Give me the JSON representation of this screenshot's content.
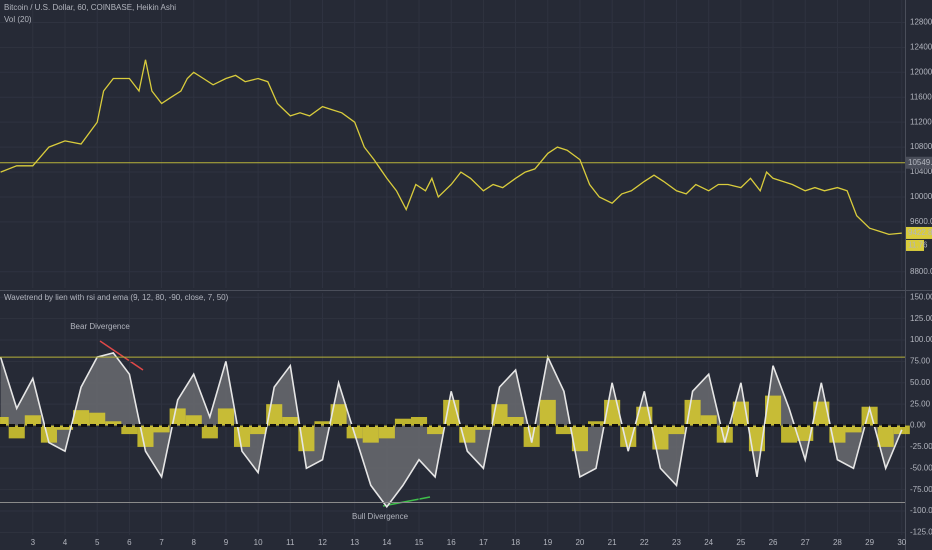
{
  "chart_data": [
    {
      "type": "line",
      "title": "Bitcoin / U.S. Dollar, 60, COINBASE, Heikin Ashi",
      "subtitle": "Vol (20)",
      "x": [
        2,
        2.5,
        3,
        3.5,
        4,
        4.5,
        5,
        5.2,
        5.5,
        6,
        6.3,
        6.5,
        6.7,
        7,
        7.3,
        7.6,
        7.8,
        8,
        8.3,
        8.6,
        9,
        9.3,
        9.6,
        10,
        10.3,
        10.6,
        11,
        11.3,
        11.6,
        12,
        12.3,
        12.6,
        13,
        13.3,
        13.6,
        14,
        14.3,
        14.6,
        14.9,
        15.2,
        15.4,
        15.6,
        16,
        16.3,
        16.6,
        17,
        17.3,
        17.6,
        18,
        18.3,
        18.6,
        19,
        19.3,
        19.6,
        20,
        20.3,
        20.6,
        21,
        21.3,
        21.6,
        22,
        22.3,
        22.6,
        23,
        23.3,
        23.6,
        24,
        24.3,
        24.6,
        25,
        25.3,
        25.6,
        25.8,
        26,
        26.3,
        26.6,
        27,
        27.3,
        27.6,
        28,
        28.3,
        28.6,
        29,
        29.3,
        29.6,
        30
      ],
      "values": [
        10400,
        10500,
        10500,
        10800,
        10900,
        10850,
        11200,
        11700,
        11900,
        11900,
        11700,
        12200,
        11700,
        11500,
        11600,
        11700,
        11900,
        12000,
        11900,
        11800,
        11900,
        11950,
        11850,
        11900,
        11850,
        11500,
        11300,
        11350,
        11300,
        11450,
        11400,
        11350,
        11200,
        10800,
        10600,
        10300,
        10100,
        9800,
        10200,
        10100,
        10300,
        10000,
        10200,
        10400,
        10300,
        10100,
        10200,
        10150,
        10300,
        10400,
        10450,
        10700,
        10800,
        10750,
        10600,
        10200,
        10000,
        9900,
        10050,
        10100,
        10250,
        10350,
        10250,
        10100,
        10050,
        10200,
        10100,
        10200,
        10200,
        10150,
        10300,
        10100,
        10400,
        10300,
        10250,
        10200,
        10100,
        10150,
        10100,
        10150,
        10100,
        9700,
        9500,
        9450,
        9400,
        9420
      ],
      "color": "#d9cc3c",
      "xlim": [
        1.98,
        30.1
      ],
      "ylim": [
        8540,
        13160
      ],
      "yticks": [
        {
          "value": 8800,
          "label": "8800.00"
        },
        {
          "value": 9600,
          "label": "9600.00"
        },
        {
          "value": 10000,
          "label": "10000.00"
        },
        {
          "value": 10400,
          "label": "10400.00"
        },
        {
          "value": 10800,
          "label": "10800.00"
        },
        {
          "value": 11200,
          "label": "11200.00"
        },
        {
          "value": 11600,
          "label": "11600.00"
        },
        {
          "value": 12000,
          "label": "12000.00"
        },
        {
          "value": 12400,
          "label": "12400.00"
        },
        {
          "value": 12800,
          "label": "12800.00"
        }
      ],
      "hline": 10549.31,
      "hline_color": "#b7b23a",
      "last_price": 9422.88,
      "last_volume": 11.76,
      "grid": true
    },
    {
      "type": "oscillator",
      "title": "Wavetrend by lien with rsi and ema (9, 12, 80, -90, close, 7, 50)",
      "x": [
        2,
        2.5,
        3,
        3.5,
        4,
        4.5,
        5,
        5.5,
        6,
        6.5,
        7,
        7.5,
        8,
        8.5,
        9,
        9.5,
        10,
        10.5,
        11,
        11.5,
        12,
        12.5,
        13,
        13.5,
        14,
        14.5,
        15,
        15.5,
        16,
        16.5,
        17,
        17.5,
        18,
        18.5,
        19,
        19.5,
        20,
        20.5,
        21,
        21.5,
        22,
        22.5,
        23,
        23.5,
        24,
        24.5,
        25,
        25.5,
        26,
        26.5,
        27,
        27.5,
        28,
        28.5,
        29,
        29.5,
        30
      ],
      "values": [
        80,
        20,
        55,
        -20,
        -30,
        45,
        80,
        85,
        60,
        -30,
        -60,
        30,
        60,
        10,
        75,
        -30,
        -55,
        45,
        70,
        -50,
        -40,
        50,
        -10,
        -70,
        -95,
        -70,
        -40,
        -60,
        40,
        -30,
        -50,
        45,
        65,
        -20,
        80,
        40,
        -60,
        -50,
        50,
        -30,
        40,
        -50,
        -70,
        40,
        60,
        -20,
        50,
        -60,
        70,
        20,
        -40,
        50,
        -40,
        -50,
        20,
        -50,
        -5
      ],
      "color": "#e6e6e6",
      "histogram": [
        10,
        -15,
        12,
        -20,
        -5,
        18,
        15,
        5,
        -10,
        -25,
        -8,
        20,
        12,
        -15,
        20,
        -25,
        -10,
        25,
        10,
        -30,
        5,
        25,
        -15,
        -20,
        -15,
        8,
        10,
        -10,
        30,
        -20,
        -5,
        25,
        10,
        -25,
        30,
        -10,
        -30,
        5,
        30,
        -25,
        22,
        -28,
        -10,
        30,
        12,
        -20,
        28,
        -30,
        35,
        -20,
        -18,
        28,
        -20,
        -8,
        22,
        -25,
        -10
      ],
      "histogram_color": "#d9cc2e",
      "levels": [
        {
          "value": 80,
          "color": "#b7b23a"
        },
        {
          "value": 0,
          "color": "#111111"
        },
        {
          "value": -90,
          "color": "#8a8a8a"
        }
      ],
      "annotations": [
        {
          "text": "Bear Divergence",
          "color": "#e04848"
        },
        {
          "text": "Bull Divergence",
          "color": "#3fbf4a"
        }
      ],
      "xlim": [
        1.98,
        30.1
      ],
      "xticks": [
        3,
        4,
        5,
        6,
        7,
        8,
        9,
        10,
        11,
        12,
        13,
        14,
        15,
        16,
        17,
        18,
        19,
        20,
        21,
        22,
        23,
        24,
        25,
        26,
        27,
        28,
        29,
        30
      ],
      "ylim": [
        -128,
        155
      ],
      "yticks": [
        {
          "value": 150,
          "label": "150.00"
        },
        {
          "value": 125,
          "label": "125.00"
        },
        {
          "value": 100,
          "label": "100.00"
        },
        {
          "value": 75,
          "label": "75.00"
        },
        {
          "value": 50,
          "label": "50.00"
        },
        {
          "value": 25,
          "label": "25.00"
        },
        {
          "value": 0,
          "label": "0.00"
        },
        {
          "value": -25,
          "label": "-25.00"
        },
        {
          "value": -50,
          "label": "-50.00"
        },
        {
          "value": -75,
          "label": "-75.00"
        },
        {
          "value": -100,
          "label": "-100.00"
        },
        {
          "value": -125,
          "label": "-125.00"
        }
      ],
      "grid": true
    }
  ]
}
